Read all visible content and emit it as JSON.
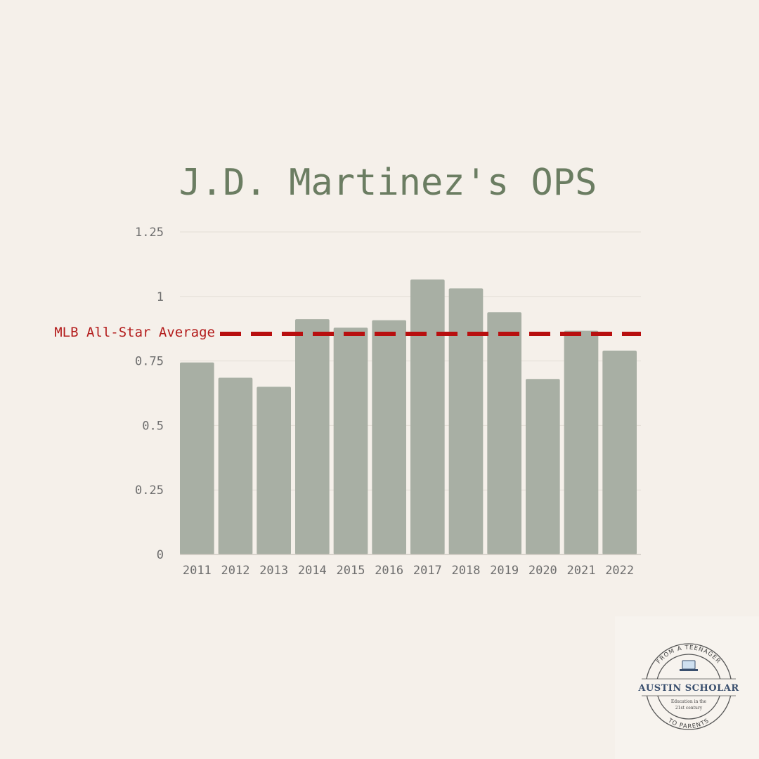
{
  "chart_data": {
    "type": "bar",
    "title": "J.D. Martinez's OPS",
    "xlabel": "",
    "ylabel": "",
    "categories": [
      "2011",
      "2012",
      "2013",
      "2014",
      "2015",
      "2016",
      "2017",
      "2018",
      "2019",
      "2020",
      "2021",
      "2022"
    ],
    "values": [
      0.744,
      0.685,
      0.65,
      0.912,
      0.879,
      0.908,
      1.066,
      1.031,
      0.939,
      0.68,
      0.867,
      0.79
    ],
    "ylim": [
      0,
      1.25
    ],
    "yticks": [
      0,
      0.25,
      0.5,
      0.75,
      1,
      1.25
    ],
    "ytick_labels": [
      "0",
      "0.25",
      "0.5",
      "0.75",
      "1",
      "1.25"
    ],
    "grid": true,
    "reference_line": {
      "label": "MLB All-Star Average",
      "value": 0.855,
      "style": "dashed"
    },
    "colors": {
      "bar": "#a8afa4",
      "reference": "#b80f0f",
      "title": "#6b7d62",
      "background": "#f5f0ea"
    }
  },
  "logo": {
    "arc_top": "FROM A TEENAGER",
    "arc_bottom": "TO PARENTS",
    "name": "AUSTIN SCHOLAR",
    "sub_line1": "Education in the",
    "sub_line2": "21st century",
    "icon": "laptop-icon"
  }
}
